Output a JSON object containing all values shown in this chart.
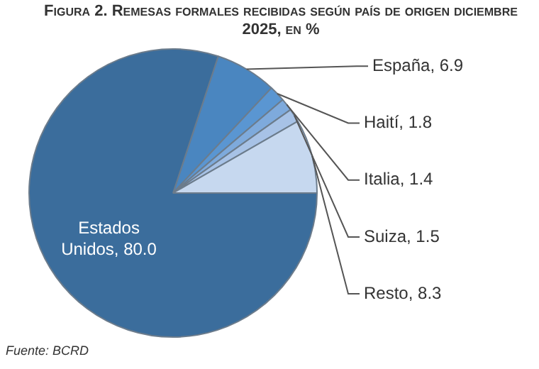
{
  "chart_data": {
    "type": "pie",
    "title": "Figura 2. Remesas formales recibidas según país de origen diciembre 2025, en %",
    "categories": [
      "España",
      "Haití",
      "Italia",
      "Suiza",
      "Resto",
      "Estados Unidos"
    ],
    "values": [
      6.9,
      1.8,
      1.4,
      1.5,
      8.3,
      80.0
    ],
    "value_labels": [
      "6.9",
      "1.8",
      "1.4",
      "1.5",
      "8.3",
      "80.0"
    ],
    "colors": [
      "#4a86c0",
      "#5a96d2",
      "#7eaadc",
      "#a7c2e6",
      "#c6d8ef",
      "#3b6d9c"
    ],
    "legend": false,
    "annotations": [
      "Fuente: BCRD"
    ]
  }
}
